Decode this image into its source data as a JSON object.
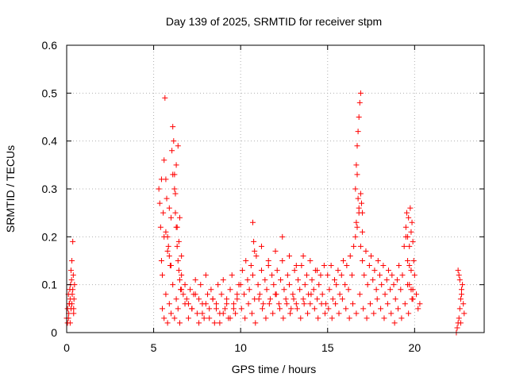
{
  "chart_data": {
    "type": "scatter",
    "title": "Day 139 of 2025, SRMTID for receiver stpm",
    "xlabel": "GPS time / hours",
    "ylabel": "SRMTID / TECUs",
    "xlim": [
      0,
      24
    ],
    "ylim": [
      0,
      0.6
    ],
    "xticks": [
      "0",
      "5",
      "10",
      "15",
      "20"
    ],
    "yticks": [
      "0",
      "0.1",
      "0.2",
      "0.3",
      "0.4",
      "0.5",
      "0.6"
    ],
    "grid": true,
    "marker": "plus",
    "marker_color": "#ff0000",
    "series": [
      {
        "x": [
          0.0,
          0.05,
          0.1,
          0.12,
          0.15,
          0.18,
          0.2,
          0.22,
          0.25,
          0.28,
          0.3,
          0.32,
          0.35,
          0.38,
          0.4,
          0.42,
          0.45,
          0.3,
          0.35,
          0.2,
          0.1,
          0.25,
          0.15,
          0.4,
          0.05,
          5.3,
          5.35,
          5.4,
          5.45,
          5.5,
          5.55,
          5.6,
          5.65,
          5.7,
          5.75,
          5.8,
          5.85,
          5.9,
          5.95,
          6.0,
          6.05,
          6.1,
          6.15,
          6.2,
          6.25,
          6.3,
          6.35,
          6.4,
          6.45,
          6.5,
          6.55,
          6.6,
          6.7,
          6.8,
          6.9,
          7.0,
          7.1,
          7.2,
          7.3,
          7.4,
          7.5,
          7.6,
          7.7,
          7.8,
          7.9,
          8.0,
          8.1,
          8.2,
          8.3,
          8.4,
          8.5,
          8.6,
          8.7,
          8.8,
          8.9,
          9.0,
          9.1,
          9.2,
          9.3,
          9.4,
          9.5,
          9.6,
          9.7,
          9.8,
          9.9,
          5.5,
          5.6,
          5.7,
          5.8,
          5.9,
          6.0,
          6.1,
          6.2,
          6.3,
          6.4,
          6.5,
          6.6,
          6.8,
          7.0,
          7.2,
          7.4,
          7.6,
          7.8,
          8.0,
          8.2,
          8.4,
          8.6,
          8.8,
          9.0,
          9.2,
          9.4,
          9.6,
          9.8,
          5.6,
          5.8,
          6.0,
          6.2,
          6.3,
          6.4,
          6.5,
          6.6,
          5.9,
          6.1,
          6.25,
          6.35,
          5.7,
          5.45,
          6.45,
          10.0,
          10.1,
          10.2,
          10.3,
          10.4,
          10.5,
          10.6,
          10.7,
          10.8,
          10.9,
          11.0,
          11.1,
          11.2,
          11.3,
          11.4,
          11.5,
          11.6,
          11.7,
          11.8,
          11.9,
          12.0,
          12.1,
          12.2,
          12.3,
          12.4,
          12.5,
          12.6,
          12.7,
          12.8,
          12.9,
          13.0,
          13.1,
          13.2,
          13.3,
          13.4,
          13.5,
          13.6,
          13.7,
          13.8,
          13.9,
          14.0,
          14.1,
          14.2,
          14.3,
          14.4,
          14.5,
          14.6,
          14.7,
          14.8,
          14.9,
          10.05,
          10.25,
          10.45,
          10.65,
          10.85,
          11.05,
          11.25,
          11.45,
          11.65,
          11.85,
          12.05,
          12.25,
          12.45,
          12.65,
          12.85,
          13.05,
          13.25,
          13.45,
          13.65,
          13.85,
          14.05,
          14.25,
          14.45,
          14.65,
          14.85,
          10.7,
          10.75,
          10.8,
          11.2,
          11.6,
          12.0,
          12.4,
          12.8,
          13.2,
          13.6,
          14.0,
          14.4,
          15.0,
          15.1,
          15.2,
          15.3,
          15.4,
          15.5,
          15.6,
          15.7,
          15.8,
          15.9,
          16.0,
          16.1,
          16.2,
          16.3,
          16.4,
          16.5,
          16.6,
          16.7,
          16.8,
          16.9,
          17.0,
          17.1,
          17.2,
          17.3,
          17.4,
          17.5,
          17.6,
          17.7,
          17.8,
          17.9,
          18.0,
          18.1,
          18.2,
          18.3,
          18.4,
          18.5,
          18.6,
          18.7,
          18.8,
          18.9,
          19.0,
          19.1,
          19.2,
          19.3,
          19.4,
          19.5,
          19.6,
          19.7,
          19.8,
          19.9,
          15.05,
          15.25,
          15.45,
          15.65,
          15.85,
          16.05,
          16.25,
          16.45,
          16.65,
          16.85,
          17.05,
          17.25,
          17.45,
          17.65,
          17.85,
          18.05,
          18.25,
          18.45,
          18.65,
          18.85,
          19.05,
          19.25,
          19.45,
          19.65,
          19.85,
          16.6,
          16.65,
          16.7,
          16.75,
          16.8,
          16.85,
          16.9,
          16.95,
          17.0,
          16.7,
          16.75,
          16.65,
          16.8,
          16.9,
          17.0,
          19.5,
          19.55,
          19.6,
          19.65,
          19.7,
          19.75,
          19.8,
          19.85,
          19.9,
          19.95,
          20.0,
          20.1,
          20.2,
          20.3,
          19.6,
          19.7,
          19.8,
          19.9,
          22.4,
          22.45,
          22.5,
          22.55,
          22.6,
          22.65,
          22.7,
          22.75,
          22.8,
          22.85,
          22.5,
          22.6,
          22.7,
          22.55,
          22.65
        ],
        "y": [
          0.03,
          0.05,
          0.08,
          0.04,
          0.06,
          0.09,
          0.07,
          0.1,
          0.05,
          0.11,
          0.06,
          0.08,
          0.09,
          0.12,
          0.04,
          0.07,
          0.1,
          0.15,
          0.19,
          0.02,
          0.03,
          0.13,
          0.06,
          0.05,
          0.02,
          0.3,
          0.27,
          0.22,
          0.15,
          0.12,
          0.25,
          0.36,
          0.49,
          0.32,
          0.28,
          0.2,
          0.18,
          0.16,
          0.14,
          0.24,
          0.38,
          0.43,
          0.4,
          0.33,
          0.25,
          0.22,
          0.18,
          0.15,
          0.13,
          0.11,
          0.09,
          0.12,
          0.08,
          0.1,
          0.07,
          0.06,
          0.09,
          0.05,
          0.08,
          0.11,
          0.04,
          0.07,
          0.1,
          0.06,
          0.03,
          0.12,
          0.08,
          0.05,
          0.09,
          0.07,
          0.02,
          0.06,
          0.1,
          0.04,
          0.08,
          0.11,
          0.05,
          0.07,
          0.03,
          0.09,
          0.12,
          0.06,
          0.04,
          0.08,
          0.1,
          0.05,
          0.03,
          0.08,
          0.02,
          0.06,
          0.04,
          0.1,
          0.03,
          0.07,
          0.05,
          0.02,
          0.09,
          0.06,
          0.03,
          0.05,
          0.08,
          0.02,
          0.04,
          0.06,
          0.03,
          0.07,
          0.05,
          0.02,
          0.04,
          0.06,
          0.03,
          0.05,
          0.07,
          0.2,
          0.17,
          0.14,
          0.3,
          0.35,
          0.39,
          0.24,
          0.16,
          0.26,
          0.33,
          0.29,
          0.22,
          0.21,
          0.32,
          0.19,
          0.1,
          0.13,
          0.08,
          0.15,
          0.11,
          0.09,
          0.14,
          0.12,
          0.07,
          0.16,
          0.1,
          0.08,
          0.13,
          0.06,
          0.11,
          0.09,
          0.14,
          0.07,
          0.12,
          0.1,
          0.08,
          0.13,
          0.06,
          0.11,
          0.15,
          0.09,
          0.07,
          0.12,
          0.1,
          0.05,
          0.08,
          0.13,
          0.06,
          0.11,
          0.09,
          0.14,
          0.07,
          0.1,
          0.12,
          0.08,
          0.06,
          0.11,
          0.09,
          0.13,
          0.07,
          0.1,
          0.12,
          0.08,
          0.14,
          0.06,
          0.05,
          0.03,
          0.06,
          0.04,
          0.02,
          0.07,
          0.05,
          0.03,
          0.06,
          0.04,
          0.08,
          0.05,
          0.03,
          0.06,
          0.04,
          0.07,
          0.05,
          0.03,
          0.06,
          0.04,
          0.08,
          0.05,
          0.03,
          0.06,
          0.04,
          0.23,
          0.19,
          0.17,
          0.18,
          0.15,
          0.17,
          0.2,
          0.16,
          0.14,
          0.16,
          0.15,
          0.13,
          0.12,
          0.09,
          0.14,
          0.07,
          0.11,
          0.1,
          0.13,
          0.08,
          0.12,
          0.15,
          0.1,
          0.14,
          0.09,
          0.16,
          0.12,
          0.18,
          0.2,
          0.22,
          0.25,
          0.18,
          0.15,
          0.12,
          0.17,
          0.1,
          0.14,
          0.16,
          0.11,
          0.13,
          0.09,
          0.15,
          0.12,
          0.1,
          0.14,
          0.08,
          0.11,
          0.13,
          0.09,
          0.12,
          0.1,
          0.07,
          0.11,
          0.14,
          0.09,
          0.12,
          0.18,
          0.2,
          0.15,
          0.1,
          0.13,
          0.09,
          0.05,
          0.03,
          0.06,
          0.04,
          0.07,
          0.05,
          0.03,
          0.06,
          0.04,
          0.08,
          0.05,
          0.03,
          0.06,
          0.04,
          0.07,
          0.05,
          0.03,
          0.06,
          0.04,
          0.02,
          0.05,
          0.03,
          0.06,
          0.04,
          0.07,
          0.3,
          0.35,
          0.39,
          0.42,
          0.45,
          0.48,
          0.5,
          0.27,
          0.25,
          0.33,
          0.28,
          0.23,
          0.26,
          0.29,
          0.21,
          0.22,
          0.25,
          0.2,
          0.24,
          0.18,
          0.26,
          0.21,
          0.23,
          0.19,
          0.15,
          0.12,
          0.08,
          0.05,
          0.06,
          0.1,
          0.14,
          0.09,
          0.07,
          0.0,
          0.01,
          0.02,
          0.03,
          0.05,
          0.07,
          0.09,
          0.1,
          0.06,
          0.04,
          0.13,
          0.11,
          0.08,
          0.12,
          0.02
        ]
      }
    ]
  }
}
